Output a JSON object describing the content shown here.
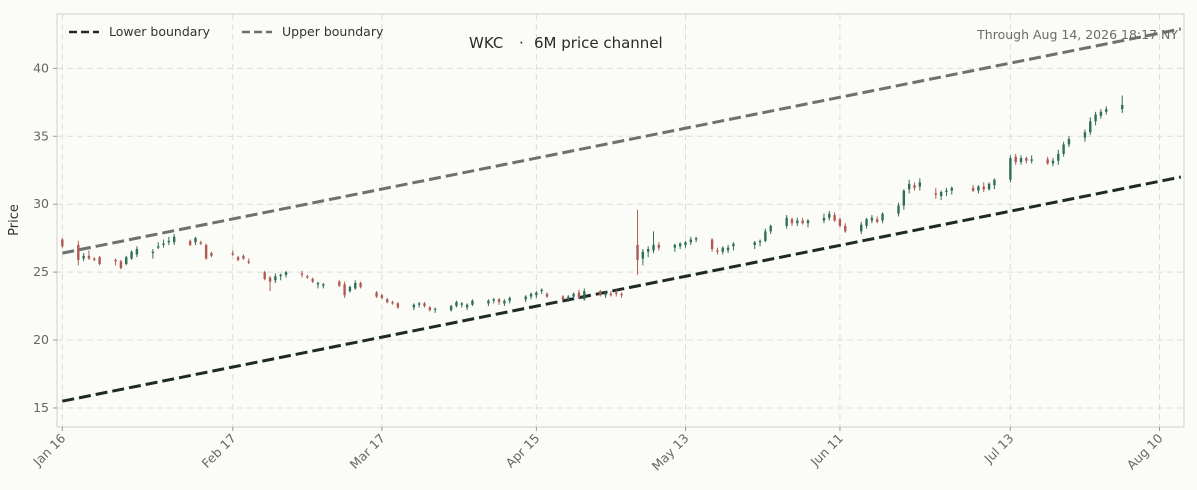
{
  "chart_data": {
    "type": "candlestick",
    "title_left": "WKC",
    "title_sep": "·",
    "title_right": "6M price channel",
    "note": "Through Aug 14, 2026 18:17 NY",
    "ylabel": "Price",
    "xlabel": "",
    "ylim": [
      13.6,
      44.0
    ],
    "y_ticks": [
      15,
      20,
      25,
      30,
      35,
      40
    ],
    "x_ticks": [
      "Jan 16",
      "Feb 17",
      "Mar 17",
      "Apr 15",
      "May 13",
      "Jun 11",
      "Jul 13",
      "Aug 10"
    ],
    "x_tick_dates": [
      "2026-01-16",
      "2026-02-17",
      "2026-03-17",
      "2026-04-15",
      "2026-05-13",
      "2026-06-11",
      "2026-07-13",
      "2026-08-10"
    ],
    "grid": true,
    "legend_position": "top-left",
    "colors": {
      "up": "#2f6e57",
      "down": "#b05a55",
      "lower_boundary": "#1d2b24",
      "upper_boundary": "#6b7270",
      "grid": "#dcdcdc",
      "background": "#fbfbf8"
    },
    "series": [
      {
        "name": "Lower boundary",
        "start": [
          "2026-01-16",
          15.5
        ],
        "end": [
          "2026-08-14",
          32.0
        ]
      },
      {
        "name": "Upper boundary",
        "start": [
          "2026-01-16",
          26.4
        ],
        "end": [
          "2026-08-14",
          42.9
        ]
      }
    ],
    "candles": [
      [
        "2026-01-16",
        27.4,
        27.5,
        26.8,
        26.9
      ],
      [
        "2026-01-19",
        27.0,
        27.3,
        25.5,
        25.9
      ],
      [
        "2026-01-20",
        26.0,
        26.4,
        25.8,
        26.2
      ],
      [
        "2026-01-21",
        26.2,
        26.6,
        25.9,
        26.0
      ],
      [
        "2026-01-22",
        26.0,
        26.1,
        25.8,
        25.9
      ],
      [
        "2026-01-23",
        26.1,
        26.2,
        25.5,
        25.6
      ],
      [
        "2026-01-26",
        25.9,
        26.0,
        25.5,
        25.8
      ],
      [
        "2026-01-27",
        25.8,
        25.9,
        25.2,
        25.3
      ],
      [
        "2026-01-28",
        25.6,
        26.2,
        25.5,
        26.1
      ],
      [
        "2026-01-29",
        26.0,
        26.6,
        25.9,
        26.5
      ],
      [
        "2026-01-30",
        26.3,
        26.9,
        26.1,
        26.7
      ],
      [
        "2026-02-02",
        26.4,
        26.7,
        26.0,
        26.5
      ],
      [
        "2026-02-03",
        26.8,
        27.2,
        26.7,
        26.9
      ],
      [
        "2026-02-04",
        27.0,
        27.4,
        26.8,
        27.1
      ],
      [
        "2026-02-05",
        27.2,
        27.6,
        27.0,
        27.3
      ],
      [
        "2026-02-06",
        27.2,
        27.8,
        27.0,
        27.6
      ],
      [
        "2026-02-09",
        27.3,
        27.4,
        26.9,
        27.0
      ],
      [
        "2026-02-10",
        27.2,
        27.6,
        27.0,
        27.5
      ],
      [
        "2026-02-11",
        27.2,
        27.3,
        27.0,
        27.1
      ],
      [
        "2026-02-12",
        27.0,
        27.1,
        25.9,
        26.0
      ],
      [
        "2026-02-13",
        26.4,
        26.5,
        26.1,
        26.2
      ],
      [
        "2026-02-17",
        26.4,
        26.6,
        26.2,
        26.3
      ],
      [
        "2026-02-18",
        26.1,
        26.2,
        25.8,
        25.9
      ],
      [
        "2026-02-19",
        26.2,
        26.3,
        25.9,
        26.0
      ],
      [
        "2026-02-20",
        25.8,
        26.0,
        25.6,
        25.7
      ],
      [
        "2026-02-23",
        25.0,
        25.1,
        24.4,
        24.5
      ],
      [
        "2026-02-24",
        24.6,
        24.7,
        23.6,
        24.3
      ],
      [
        "2026-02-25",
        24.4,
        24.9,
        24.2,
        24.7
      ],
      [
        "2026-02-26",
        24.7,
        24.9,
        24.4,
        24.8
      ],
      [
        "2026-02-27",
        24.8,
        25.1,
        24.6,
        25.0
      ],
      [
        "2026-03-02",
        24.9,
        25.1,
        24.6,
        24.8
      ],
      [
        "2026-03-03",
        24.7,
        24.8,
        24.5,
        24.6
      ],
      [
        "2026-03-04",
        24.5,
        24.6,
        24.2,
        24.3
      ],
      [
        "2026-03-05",
        24.1,
        24.3,
        23.8,
        24.2
      ],
      [
        "2026-03-06",
        24.0,
        24.2,
        23.8,
        24.1
      ],
      [
        "2026-03-09",
        24.3,
        24.4,
        23.9,
        24.0
      ],
      [
        "2026-03-10",
        24.1,
        24.3,
        23.1,
        23.3
      ],
      [
        "2026-03-11",
        23.6,
        24.0,
        23.5,
        23.9
      ],
      [
        "2026-03-12",
        23.8,
        24.4,
        23.7,
        24.2
      ],
      [
        "2026-03-13",
        24.2,
        24.3,
        23.8,
        23.9
      ],
      [
        "2026-03-16",
        23.5,
        23.6,
        23.1,
        23.2
      ],
      [
        "2026-03-17",
        23.3,
        23.4,
        23.0,
        23.1
      ],
      [
        "2026-03-18",
        23.0,
        23.1,
        22.7,
        22.8
      ],
      [
        "2026-03-19",
        22.8,
        22.9,
        22.6,
        22.7
      ],
      [
        "2026-03-20",
        22.7,
        22.8,
        22.3,
        22.4
      ],
      [
        "2026-03-23",
        22.4,
        22.7,
        22.2,
        22.6
      ],
      [
        "2026-03-24",
        22.6,
        22.8,
        22.4,
        22.7
      ],
      [
        "2026-03-25",
        22.7,
        22.8,
        22.4,
        22.5
      ],
      [
        "2026-03-26",
        22.4,
        22.5,
        22.1,
        22.2
      ],
      [
        "2026-03-27",
        22.3,
        22.4,
        22.0,
        22.3
      ],
      [
        "2026-03-30",
        22.2,
        22.6,
        22.1,
        22.5
      ],
      [
        "2026-03-31",
        22.5,
        22.9,
        22.4,
        22.8
      ],
      [
        "2026-04-01",
        22.6,
        22.8,
        22.4,
        22.7
      ],
      [
        "2026-04-02",
        22.4,
        22.7,
        22.2,
        22.6
      ],
      [
        "2026-04-03",
        22.6,
        23.0,
        22.5,
        22.9
      ],
      [
        "2026-04-06",
        22.7,
        23.0,
        22.5,
        22.9
      ],
      [
        "2026-04-07",
        22.9,
        23.1,
        22.7,
        23.0
      ],
      [
        "2026-04-08",
        23.0,
        23.1,
        22.6,
        22.8
      ],
      [
        "2026-04-09",
        22.7,
        23.0,
        22.5,
        22.9
      ],
      [
        "2026-04-10",
        22.9,
        23.2,
        22.7,
        23.1
      ],
      [
        "2026-04-13",
        23.0,
        23.3,
        22.8,
        23.2
      ],
      [
        "2026-04-14",
        23.2,
        23.5,
        23.0,
        23.4
      ],
      [
        "2026-04-15",
        23.3,
        23.6,
        23.1,
        23.5
      ],
      [
        "2026-04-16",
        23.6,
        23.8,
        23.4,
        23.7
      ],
      [
        "2026-04-17",
        23.4,
        23.5,
        23.1,
        23.2
      ],
      [
        "2026-04-20",
        23.2,
        23.3,
        22.9,
        23.0
      ],
      [
        "2026-04-21",
        23.1,
        23.3,
        22.8,
        23.2
      ],
      [
        "2026-04-22",
        23.2,
        23.5,
        23.0,
        23.4
      ],
      [
        "2026-04-23",
        23.5,
        23.7,
        23.0,
        23.1
      ],
      [
        "2026-04-24",
        23.0,
        23.8,
        22.9,
        23.6
      ],
      [
        "2026-04-27",
        23.6,
        23.7,
        23.2,
        23.3
      ],
      [
        "2026-04-28",
        23.3,
        23.6,
        23.1,
        23.5
      ],
      [
        "2026-04-29",
        23.4,
        23.6,
        23.2,
        23.3
      ],
      [
        "2026-04-30",
        23.5,
        23.7,
        23.2,
        23.4
      ],
      [
        "2026-05-01",
        23.4,
        23.5,
        23.1,
        23.3
      ],
      [
        "2026-05-04",
        27.0,
        29.6,
        24.8,
        25.9
      ],
      [
        "2026-05-05",
        26.0,
        26.7,
        25.5,
        26.5
      ],
      [
        "2026-05-06",
        26.5,
        26.9,
        26.1,
        26.7
      ],
      [
        "2026-05-07",
        26.6,
        28.0,
        26.4,
        27.0
      ],
      [
        "2026-05-08",
        27.0,
        27.2,
        26.6,
        26.8
      ],
      [
        "2026-05-11",
        26.8,
        27.1,
        26.5,
        27.0
      ],
      [
        "2026-05-12",
        26.9,
        27.2,
        26.7,
        27.1
      ],
      [
        "2026-05-13",
        27.0,
        27.3,
        26.8,
        27.2
      ],
      [
        "2026-05-14",
        27.2,
        27.6,
        27.0,
        27.4
      ],
      [
        "2026-05-15",
        27.4,
        27.6,
        27.2,
        27.5
      ],
      [
        "2026-05-18",
        27.4,
        27.5,
        26.5,
        26.7
      ],
      [
        "2026-05-19",
        26.6,
        26.8,
        26.3,
        26.5
      ],
      [
        "2026-05-20",
        26.5,
        26.9,
        26.3,
        26.8
      ],
      [
        "2026-05-21",
        26.6,
        27.0,
        26.4,
        26.8
      ],
      [
        "2026-05-22",
        26.9,
        27.2,
        26.6,
        27.1
      ],
      [
        "2026-05-26",
        27.0,
        27.3,
        26.7,
        27.2
      ],
      [
        "2026-05-27",
        27.2,
        27.4,
        26.9,
        27.3
      ],
      [
        "2026-05-28",
        27.3,
        28.2,
        27.2,
        28.0
      ],
      [
        "2026-05-29",
        28.0,
        28.5,
        27.8,
        28.4
      ],
      [
        "2026-06-01",
        28.4,
        29.2,
        28.2,
        29.0
      ],
      [
        "2026-06-02",
        28.9,
        29.0,
        28.4,
        28.6
      ],
      [
        "2026-06-03",
        28.6,
        29.0,
        28.4,
        28.8
      ],
      [
        "2026-06-04",
        28.8,
        29.0,
        28.5,
        28.6
      ],
      [
        "2026-06-05",
        28.6,
        28.9,
        28.3,
        28.8
      ],
      [
        "2026-06-08",
        28.8,
        29.3,
        28.6,
        29.0
      ],
      [
        "2026-06-09",
        29.0,
        29.5,
        28.8,
        29.3
      ],
      [
        "2026-06-10",
        29.2,
        29.4,
        28.7,
        28.8
      ],
      [
        "2026-06-11",
        28.9,
        29.0,
        28.3,
        28.4
      ],
      [
        "2026-06-12",
        28.4,
        28.6,
        27.9,
        28.0
      ],
      [
        "2026-06-15",
        28.0,
        28.7,
        27.8,
        28.5
      ],
      [
        "2026-06-16",
        28.4,
        29.0,
        28.2,
        28.9
      ],
      [
        "2026-06-17",
        28.8,
        29.2,
        28.6,
        29.0
      ],
      [
        "2026-06-18",
        28.9,
        29.1,
        28.6,
        28.7
      ],
      [
        "2026-06-19",
        28.8,
        29.4,
        28.6,
        29.3
      ],
      [
        "2026-06-22",
        29.3,
        30.1,
        29.1,
        29.9
      ],
      [
        "2026-06-23",
        29.9,
        31.1,
        29.6,
        31.0
      ],
      [
        "2026-06-24",
        31.1,
        31.8,
        30.8,
        31.5
      ],
      [
        "2026-06-25",
        31.4,
        31.6,
        31.0,
        31.2
      ],
      [
        "2026-06-26",
        31.3,
        31.9,
        31.0,
        31.6
      ],
      [
        "2026-06-29",
        30.8,
        31.2,
        30.4,
        30.7
      ],
      [
        "2026-06-30",
        30.6,
        31.0,
        30.3,
        30.9
      ],
      [
        "2026-07-01",
        30.9,
        31.2,
        30.6,
        31.0
      ],
      [
        "2026-07-02",
        31.0,
        31.3,
        30.7,
        31.2
      ],
      [
        "2026-07-06",
        31.2,
        31.4,
        30.9,
        31.0
      ],
      [
        "2026-07-07",
        31.0,
        31.4,
        30.8,
        31.3
      ],
      [
        "2026-07-08",
        31.3,
        31.6,
        30.9,
        31.1
      ],
      [
        "2026-07-09",
        31.1,
        31.6,
        31.0,
        31.5
      ],
      [
        "2026-07-10",
        31.4,
        31.9,
        31.1,
        31.8
      ],
      [
        "2026-07-13",
        31.8,
        33.6,
        31.6,
        33.4
      ],
      [
        "2026-07-14",
        33.5,
        33.7,
        32.9,
        33.1
      ],
      [
        "2026-07-15",
        33.1,
        33.6,
        32.9,
        33.4
      ],
      [
        "2026-07-16",
        33.4,
        33.5,
        33.0,
        33.2
      ],
      [
        "2026-07-17",
        33.2,
        33.6,
        33.0,
        33.3
      ],
      [
        "2026-07-20",
        33.3,
        33.5,
        32.9,
        33.0
      ],
      [
        "2026-07-21",
        33.0,
        33.4,
        32.8,
        33.2
      ],
      [
        "2026-07-22",
        33.2,
        34.0,
        32.9,
        33.7
      ],
      [
        "2026-07-23",
        33.7,
        34.6,
        33.5,
        34.4
      ],
      [
        "2026-07-24",
        34.4,
        35.0,
        34.2,
        34.8
      ],
      [
        "2026-07-27",
        34.9,
        35.5,
        34.6,
        35.3
      ],
      [
        "2026-07-28",
        35.3,
        36.4,
        35.1,
        36.1
      ],
      [
        "2026-07-29",
        36.1,
        36.8,
        35.8,
        36.6
      ],
      [
        "2026-07-30",
        36.5,
        37.0,
        36.3,
        36.8
      ],
      [
        "2026-07-31",
        36.8,
        37.2,
        36.6,
        37.0
      ],
      [
        "2026-08-03",
        37.0,
        38.0,
        36.7,
        37.3
      ]
    ]
  },
  "legend": {
    "lower": "Lower boundary",
    "upper": "Upper boundary"
  }
}
